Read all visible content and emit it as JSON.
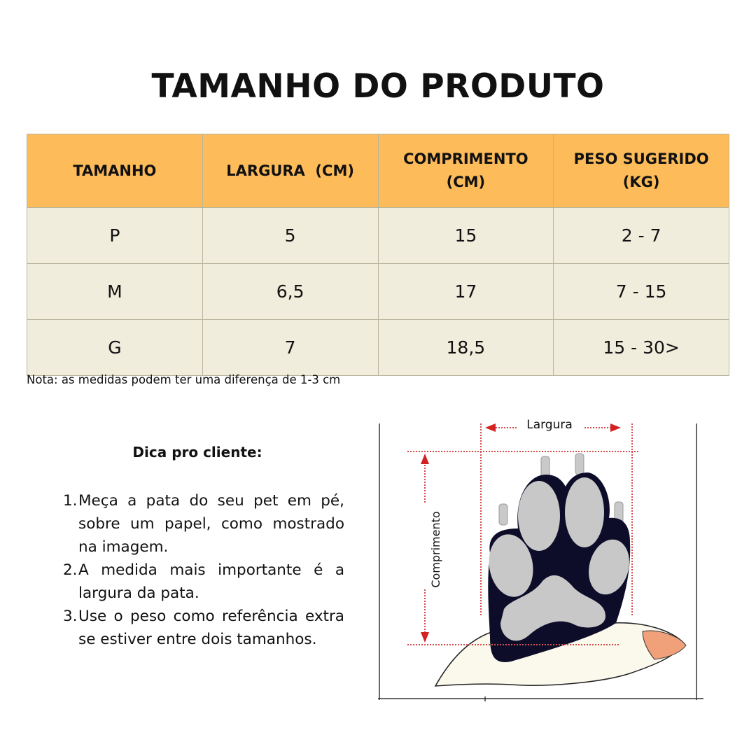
{
  "title": "TAMANHO DO PRODUTO",
  "table": {
    "headers": [
      "TAMANHO",
      "LARGURA  (CM)",
      "COMPRIMENTO (CM)",
      "PESO SUGERIDO (KG)"
    ],
    "rows": [
      [
        "P",
        "5",
        "15",
        "2 - 7"
      ],
      [
        "M",
        "6,5",
        "17",
        "7 - 15"
      ],
      [
        "G",
        "7",
        "18,5",
        "15 - 30>"
      ]
    ],
    "colors": {
      "header": "#fdbb59",
      "row": "#f1eddc"
    }
  },
  "note": "Nota: as medidas podem ter uma diferença de 1-3 cm",
  "tips": {
    "title": "Dica pro cliente:",
    "items": [
      {
        "n": "1.",
        "text": "Meça a pata do seu pet em pé, sobre um papel, como mostrado na imagem."
      },
      {
        "n": "2.",
        "text": "A medida mais importante é a largura da pata."
      },
      {
        "n": "3.",
        "text": "Use o peso como referência extra se estiver entre dois tamanhos."
      }
    ]
  },
  "illustration": {
    "width_label": "Largura",
    "length_label": "Comprimento"
  }
}
